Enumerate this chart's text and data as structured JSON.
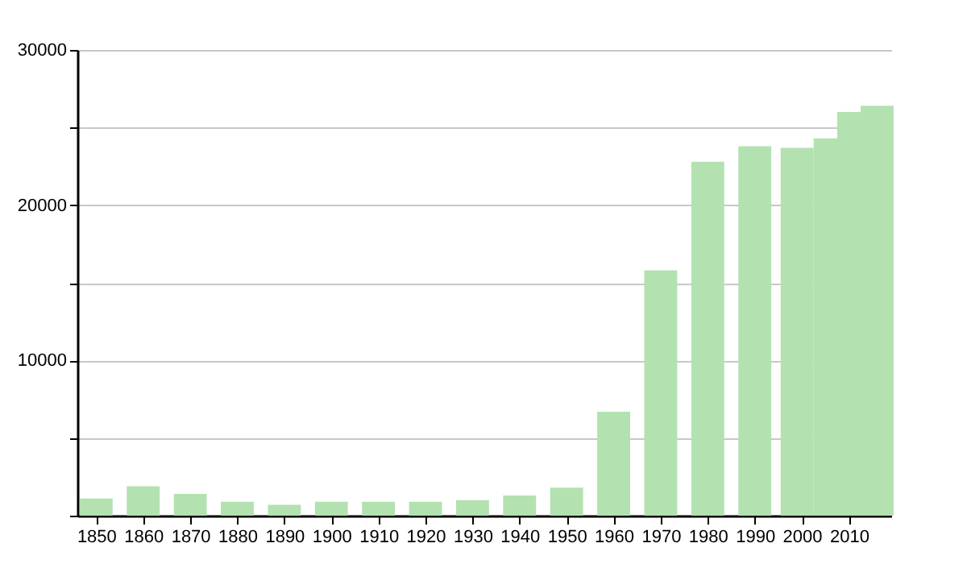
{
  "chart_data": {
    "type": "bar",
    "x": [
      1850,
      1860,
      1870,
      1880,
      1890,
      1900,
      1910,
      1920,
      1930,
      1940,
      1950,
      1960,
      1970,
      1980,
      1990,
      1999,
      2006,
      2011,
      2016
    ],
    "series": [
      {
        "color": "#b3e2b0",
        "values": [
          1100,
          1900,
          1400,
          900,
          700,
          900,
          900,
          900,
          1000,
          1300,
          1800,
          6700,
          15800,
          22800,
          23800,
          23700,
          24300,
          26000,
          26400
        ]
      }
    ],
    "xlim": [
      1846,
      2019
    ],
    "xticks": [
      1850,
      1860,
      1870,
      1880,
      1890,
      1900,
      1910,
      1920,
      1930,
      1940,
      1950,
      1960,
      1970,
      1980,
      1990,
      2000,
      2010
    ],
    "ylim": [
      0,
      30000
    ],
    "yticks": [
      {
        "value": 0,
        "label": null
      },
      {
        "value": 5000,
        "label": null
      },
      10000,
      {
        "value": 15000,
        "label": null
      },
      20000,
      {
        "value": 25000,
        "label": null
      },
      30000
    ],
    "grid": "y"
  }
}
